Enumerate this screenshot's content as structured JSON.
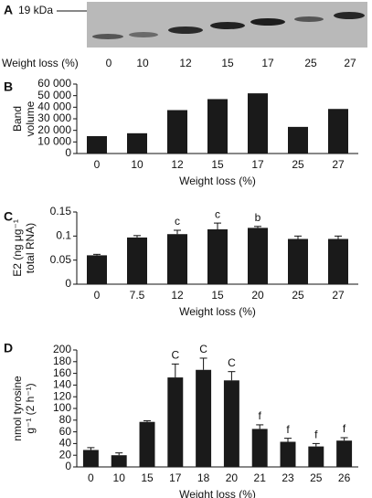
{
  "blot_panel": {
    "panel": "A",
    "marker_label": "19 kDa",
    "xlabel": "Weight loss (%)",
    "categories": [
      "0",
      "10",
      "12",
      "15",
      "17",
      "25",
      "27"
    ]
  },
  "chart_data": [
    {
      "type": "bar",
      "panel": "B",
      "ylabel": [
        "Band",
        "volume"
      ],
      "xlabel": "Weight loss (%)",
      "categories": [
        "0",
        "10",
        "12",
        "15",
        "17",
        "25",
        "27"
      ],
      "values": [
        15000,
        17500,
        37500,
        47000,
        52000,
        23000,
        38500
      ],
      "color": "#1a1a1a",
      "ylim": [
        0,
        60000
      ],
      "yticks": [
        0,
        {
          "value": 10000,
          "label": "10 000"
        },
        {
          "value": 20000,
          "label": "20 000"
        },
        {
          "value": 30000,
          "label": "30 000"
        },
        {
          "value": 40000,
          "label": "40 000"
        },
        {
          "value": 50000,
          "label": "50 000"
        },
        {
          "value": 60000,
          "label": "60 000"
        }
      ]
    },
    {
      "type": "bar",
      "panel": "C",
      "ylabel": [
        "E2 (ng μg⁻¹",
        "total RNA)"
      ],
      "xlabel": "Weight loss (%)",
      "categories": [
        "0",
        "7.5",
        "12",
        "15",
        "20",
        "25",
        "27"
      ],
      "values": [
        0.06,
        0.097,
        0.104,
        0.114,
        0.117,
        0.094,
        0.094
      ],
      "errors": [
        0.002,
        0.004,
        0.008,
        0.013,
        0.003,
        0.006,
        0.006
      ],
      "value_annotations": [
        null,
        null,
        "c",
        "c",
        "b",
        null,
        null
      ],
      "color": "#1a1a1a",
      "ylim": [
        0,
        0.15
      ],
      "yticks": [
        0,
        0.05,
        0.1,
        0.15
      ]
    },
    {
      "type": "bar",
      "panel": "D",
      "ylabel": [
        "nmol tyrosine",
        "g⁻¹ (2 h⁻¹)"
      ],
      "xlabel": "Weight loss (%)",
      "categories": [
        "0",
        "10",
        "15",
        "17",
        "18",
        "20",
        "21",
        "23",
        "25",
        "26"
      ],
      "values": [
        29,
        20,
        77,
        153,
        166,
        148,
        65,
        43,
        35,
        45
      ],
      "errors": [
        4,
        4,
        2,
        23,
        20,
        15,
        7,
        6,
        5,
        5
      ],
      "value_annotations": [
        null,
        null,
        null,
        "C",
        "C",
        "C",
        "f",
        "f",
        "f",
        "f"
      ],
      "color": "#1a1a1a",
      "ylim": [
        0,
        200
      ],
      "yticks": [
        0,
        20,
        40,
        60,
        80,
        100,
        120,
        140,
        160,
        180,
        200
      ]
    }
  ]
}
